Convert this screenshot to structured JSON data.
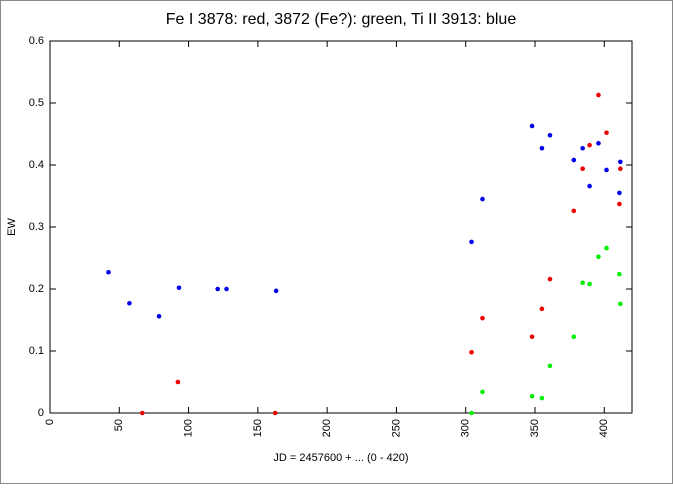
{
  "chart_data": {
    "type": "scatter",
    "title": "Fe I 3878: red, 3872 (Fe?): green, Ti II 3913: blue",
    "xlabel": "JD = 2457600 + ... (0 - 420)",
    "ylabel": "EW",
    "xlim": [
      0,
      420
    ],
    "ylim": [
      0,
      0.6
    ],
    "xticks": [
      0,
      50,
      100,
      150,
      200,
      250,
      300,
      350,
      400
    ],
    "yticks": [
      0,
      0.1,
      0.2,
      0.3,
      0.4,
      0.5,
      0.6
    ],
    "series": [
      {
        "color": "#0000ee",
        "x": [
          42.2,
          57.3,
          78.7,
          93.1,
          121,
          127.4,
          163.2,
          304.2,
          312.1,
          347.9,
          355.0,
          360.8,
          378,
          384.4,
          389.4,
          395.8,
          401.6,
          410.9,
          411.6
        ],
        "values": [
          0.227,
          0.177,
          0.156,
          0.202,
          0.2,
          0.2,
          0.197,
          0.276,
          0.345,
          0.463,
          0.427,
          0.448,
          0.408,
          0.427,
          0.366,
          0.435,
          0.392,
          0.355,
          0.405
        ]
      },
      {
        "color": "#ee0000",
        "x": [
          66.6,
          92.3,
          162.5,
          304.2,
          312.1,
          347.9,
          355.0,
          360.8,
          378,
          384.4,
          389.4,
          395.8,
          401.6,
          410.9,
          411.6
        ],
        "values": [
          0,
          0.05,
          0,
          0.098,
          0.153,
          0.123,
          0.168,
          0.216,
          0.326,
          0.394,
          0.432,
          0.513,
          0.452,
          0.337,
          0.394
        ]
      },
      {
        "color": "#00ee00",
        "x": [
          304.2,
          312.1,
          347.9,
          355.0,
          360.8,
          378,
          384.4,
          389.4,
          395.8,
          401.6,
          410.9,
          411.6
        ],
        "values": [
          0,
          0.034,
          0.027,
          0.024,
          0.076,
          0.123,
          0.21,
          0.208,
          0.252,
          0.266,
          0.224,
          0.176
        ]
      }
    ]
  }
}
